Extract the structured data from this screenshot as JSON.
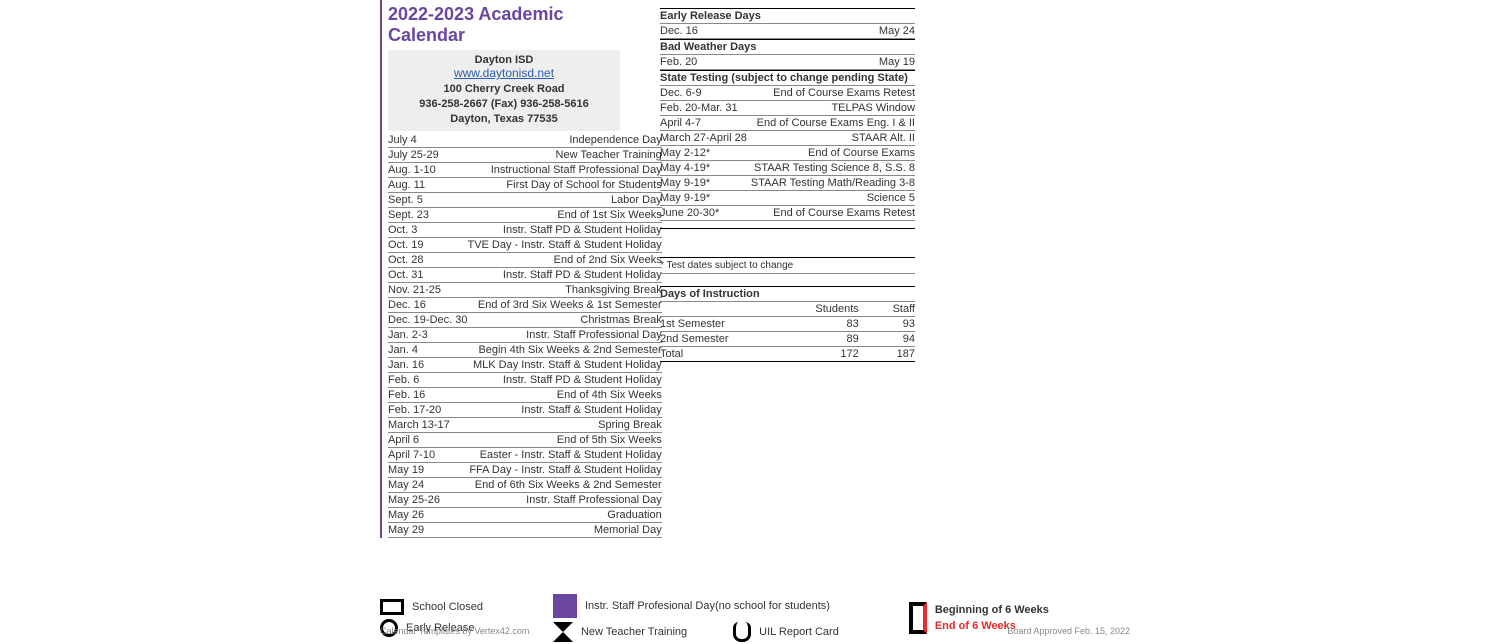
{
  "colors": {
    "accent": "#6b46a1",
    "rule": "#888888",
    "link": "#2a5db0",
    "red": "#e52b2b"
  },
  "header": {
    "title": "2022-2023 Academic Calendar",
    "district": "Dayton ISD",
    "website": "www.daytonisd.net",
    "address": "100 Cherry Creek Road",
    "phone": "936-258-2667   (Fax) 936-258-5616",
    "city": "Dayton, Texas 77535"
  },
  "events": [
    {
      "date": "July 4",
      "desc": "Independence Day"
    },
    {
      "date": "July 25-29",
      "desc": "New Teacher Training"
    },
    {
      "date": "Aug. 1-10",
      "desc": "Instructional Staff Professional Day"
    },
    {
      "date": "Aug. 11",
      "desc": "First Day of School for Students"
    },
    {
      "date": "Sept. 5",
      "desc": "Labor Day"
    },
    {
      "date": "Sept. 23",
      "desc": "End of 1st Six Weeks"
    },
    {
      "date": "Oct. 3",
      "desc": "Instr. Staff PD & Student Holiday"
    },
    {
      "date": "Oct. 19",
      "desc": "TVE Day - Instr. Staff & Student Holiday"
    },
    {
      "date": "Oct. 28",
      "desc": "End of 2nd Six Weeks"
    },
    {
      "date": "Oct. 31",
      "desc": "Instr. Staff PD & Student Holiday"
    },
    {
      "date": "Nov. 21-25",
      "desc": "Thanksgiving Break"
    },
    {
      "date": "Dec. 16",
      "desc": "End of 3rd Six Weeks & 1st Semester"
    },
    {
      "date": "Dec. 19-Dec. 30",
      "desc": "Christmas Break"
    },
    {
      "date": "Jan. 2-3",
      "desc": "Instr. Staff Professional Day"
    },
    {
      "date": "Jan. 4",
      "desc": "Begin 4th Six Weeks & 2nd Semester"
    },
    {
      "date": "Jan. 16",
      "desc": "MLK Day Instr. Staff & Student Holiday"
    },
    {
      "date": "Feb. 6",
      "desc": "Instr. Staff PD & Student Holiday"
    },
    {
      "date": "Feb. 16",
      "desc": "End of 4th Six Weeks"
    },
    {
      "date": "Feb. 17-20",
      "desc": "Instr. Staff & Student Holiday"
    },
    {
      "date": "March 13-17",
      "desc": "Spring Break"
    },
    {
      "date": "April 6",
      "desc": "End of 5th Six Weeks"
    },
    {
      "date": "April 7-10",
      "desc": "Easter - Instr. Staff & Student Holiday"
    },
    {
      "date": "May 19",
      "desc": "FFA Day - Instr. Staff & Student Holiday"
    },
    {
      "date": "May 24",
      "desc": "End of 6th Six Weeks & 2nd Semester"
    },
    {
      "date": "May 25-26",
      "desc": "Instr. Staff Professional Day"
    },
    {
      "date": "May 26",
      "desc": "Graduation"
    },
    {
      "date": "May 29",
      "desc": "Memorial Day"
    }
  ],
  "right_sections": [
    {
      "head": "Early Release Days",
      "rows": [
        {
          "date": "Dec. 16",
          "desc": "May 24"
        }
      ]
    },
    {
      "head": "Bad Weather Days",
      "rows": [
        {
          "date": "Feb. 20",
          "desc": "May 19"
        }
      ]
    },
    {
      "head": "State Testing (subject to change pending State)",
      "rows": [
        {
          "date": "Dec. 6-9",
          "desc": "End of Course Exams Retest"
        },
        {
          "date": "Feb. 20-Mar. 31",
          "desc": "TELPAS Window"
        },
        {
          "date": "April 4-7",
          "desc": "End of Course Exams Eng. I & II"
        },
        {
          "date": "March 27-April 28",
          "desc": "STAAR Alt. II"
        },
        {
          "date": "May 2-12*",
          "desc": "End of Course Exams"
        },
        {
          "date": "May 4-19*",
          "desc": "STAAR Testing Science 8, S.S. 8"
        },
        {
          "date": "May 9-19*",
          "desc": "STAAR Testing Math/Reading 3-8"
        },
        {
          "date": "May 9-19*",
          "desc": "Science 5"
        },
        {
          "date": "June 20-30*",
          "desc": "End of Course Exams Retest"
        }
      ]
    }
  ],
  "note": "* Test dates subject to change",
  "doi": {
    "title": "Days of Instruction",
    "cols": [
      "",
      "Students",
      "Staff"
    ],
    "rows": [
      {
        "label": "1st Semester",
        "students": "83",
        "staff": "93"
      },
      {
        "label": "2nd Semester",
        "students": "89",
        "staff": "94"
      },
      {
        "label": "Total",
        "students": "172",
        "staff": "187"
      }
    ]
  },
  "legend": {
    "school_closed": "School Closed",
    "early_release": "Early Release",
    "pd": "Instr. Staff Profesional Day(no school for students)",
    "ntt": "New Teacher Training",
    "uil": "UIL Report Card",
    "b6": "Beginning of 6 Weeks",
    "e6": "End of 6 Weeks"
  },
  "footer": {
    "left": "Calendar Templates by Vertex42.com",
    "right": "Board Approved Feb. 15, 2022"
  }
}
